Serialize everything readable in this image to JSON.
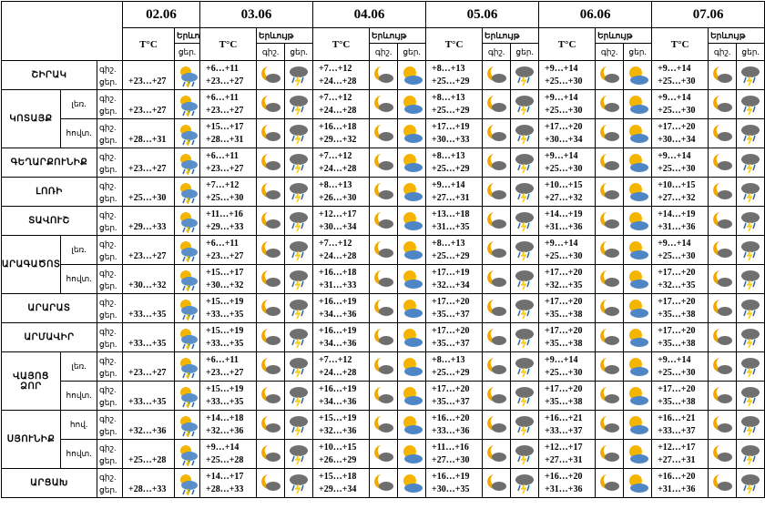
{
  "header": {
    "dates": [
      "02.06",
      "03.06",
      "04.06",
      "05.06",
      "06.06",
      "07.06"
    ],
    "temp_label": "T°C",
    "phenomenon_label": "Երևույթ",
    "night": "գիշ.",
    "day": "ցեր."
  },
  "regions": [
    {
      "name": "ՇԻՐԱԿ",
      "subs": [
        {
          "first_day": "+23…+27",
          "days": [
            [
              "+6…+11",
              "+23…+27"
            ],
            [
              "+7…+12",
              "+24…+28"
            ],
            [
              "+8…+13",
              "+25…+29"
            ],
            [
              "+9…+14",
              "+25…+30"
            ],
            [
              "+9…+14",
              "+25…+30"
            ]
          ]
        }
      ]
    },
    {
      "name": "ԿՈՏԱՅՔ",
      "subs": [
        {
          "label": "լեռ.",
          "first_day": "+23…+27",
          "days": [
            [
              "+6…+11",
              "+23…+27"
            ],
            [
              "+7…+12",
              "+24…+28"
            ],
            [
              "+8…+13",
              "+25…+29"
            ],
            [
              "+9…+14",
              "+25…+30"
            ],
            [
              "+9…+14",
              "+25…+30"
            ]
          ]
        },
        {
          "label": "հովտ.",
          "first_day": "+28…+31",
          "days": [
            [
              "+15…+17",
              "+28…+31"
            ],
            [
              "+16…+18",
              "+29…+32"
            ],
            [
              "+17…+19",
              "+30…+33"
            ],
            [
              "+17…+20",
              "+30…+34"
            ],
            [
              "+17…+20",
              "+30…+34"
            ]
          ]
        }
      ]
    },
    {
      "name": "ԳԵՂԱՐՔՈՒՆԻՔ",
      "subs": [
        {
          "first_day": "+23…+27",
          "days": [
            [
              "+6…+11",
              "+23…+27"
            ],
            [
              "+7…+12",
              "+24…+28"
            ],
            [
              "+8…+13",
              "+25…+29"
            ],
            [
              "+9…+14",
              "+25…+30"
            ],
            [
              "+9…+14",
              "+25…+30"
            ]
          ]
        }
      ]
    },
    {
      "name": "ԼՈՌԻ",
      "subs": [
        {
          "first_day": "+25…+30",
          "days": [
            [
              "+7…+12",
              "+25…+30"
            ],
            [
              "+8…+13",
              "+26…+30"
            ],
            [
              "+9…+14",
              "+27…+31"
            ],
            [
              "+10…+15",
              "+27…+32"
            ],
            [
              "+10…+15",
              "+27…+32"
            ]
          ]
        }
      ]
    },
    {
      "name": "ՏԱՎՈՒՇ",
      "subs": [
        {
          "first_day": "+29…+33",
          "days": [
            [
              "+11…+16",
              "+29…+33"
            ],
            [
              "+12…+17",
              "+30…+34"
            ],
            [
              "+13…+18",
              "+31…+35"
            ],
            [
              "+14…+19",
              "+31…+36"
            ],
            [
              "+14…+19",
              "+31…+36"
            ]
          ]
        }
      ]
    },
    {
      "name": "ԱՐԱԳԱԾՈՏՆ",
      "subs": [
        {
          "label": "լեռ.",
          "first_day": "+23…+27",
          "days": [
            [
              "+6…+11",
              "+23…+27"
            ],
            [
              "+7…+12",
              "+24…+28"
            ],
            [
              "+8…+13",
              "+25…+29"
            ],
            [
              "+9…+14",
              "+25…+30"
            ],
            [
              "+9…+14",
              "+25…+30"
            ]
          ]
        },
        {
          "label": "հովտ.",
          "first_day": "+30…+32",
          "days": [
            [
              "+15…+17",
              "+30…+32"
            ],
            [
              "+16…+18",
              "+31…+33"
            ],
            [
              "+17…+19",
              "+32…+34"
            ],
            [
              "+17…+20",
              "+32…+35"
            ],
            [
              "+17…+20",
              "+32…+35"
            ]
          ]
        }
      ]
    },
    {
      "name": "ԱՐԱՐԱՏ",
      "subs": [
        {
          "first_day": "+33…+35",
          "days": [
            [
              "+15…+19",
              "+33…+35"
            ],
            [
              "+16…+19",
              "+34…+36"
            ],
            [
              "+17…+20",
              "+35…+37"
            ],
            [
              "+17…+20",
              "+35…+38"
            ],
            [
              "+17…+20",
              "+35…+38"
            ]
          ]
        }
      ]
    },
    {
      "name": "ԱՐՄԱՎԻՐ",
      "subs": [
        {
          "first_day": "+33…+35",
          "days": [
            [
              "+15…+19",
              "+33…+35"
            ],
            [
              "+16…+19",
              "+34…+36"
            ],
            [
              "+17…+20",
              "+35…+37"
            ],
            [
              "+17…+20",
              "+35…+38"
            ],
            [
              "+17…+20",
              "+35…+38"
            ]
          ]
        }
      ]
    },
    {
      "name": "ՎԱՅՈՑ ՁՈՐ",
      "subs": [
        {
          "label": "լեռ.",
          "first_day": "+23…+27",
          "days": [
            [
              "+6…+11",
              "+23…+27"
            ],
            [
              "+7…+12",
              "+24…+28"
            ],
            [
              "+8…+13",
              "+25…+29"
            ],
            [
              "+9…+14",
              "+25…+30"
            ],
            [
              "+9…+14",
              "+25…+30"
            ]
          ]
        },
        {
          "label": "հովտ.",
          "first_day": "+33…+35",
          "days": [
            [
              "+15…+19",
              "+33…+35"
            ],
            [
              "+16…+19",
              "+34…+36"
            ],
            [
              "+17…+20",
              "+35…+37"
            ],
            [
              "+17…+20",
              "+35…+38"
            ],
            [
              "+17…+20",
              "+35…+38"
            ]
          ]
        }
      ]
    },
    {
      "name": "ՍՅՈՒՆԻՔ",
      "subs": [
        {
          "label": "հով.",
          "first_day": "+32…+36",
          "days": [
            [
              "+14…+18",
              "+32…+36"
            ],
            [
              "+15…+19",
              "+32…+36"
            ],
            [
              "+16…+20",
              "+33…+36"
            ],
            [
              "+16…+21",
              "+33…+37"
            ],
            [
              "+16…+21",
              "+33…+37"
            ]
          ]
        },
        {
          "label": "հովտ.",
          "first_day": "+25…+28",
          "days": [
            [
              "+9…+14",
              "+25…+28"
            ],
            [
              "+10…+15",
              "+26…+29"
            ],
            [
              "+11…+16",
              "+27…+30"
            ],
            [
              "+12…+17",
              "+27…+31"
            ],
            [
              "+12…+17",
              "+27…+31"
            ]
          ]
        }
      ]
    },
    {
      "name": "ԱՐՑԱԽ",
      "subs": [
        {
          "first_day": "+28…+33",
          "days": [
            [
              "+14…+17",
              "+28…+33"
            ],
            [
              "+15…+18",
              "+29…+34"
            ],
            [
              "+16…+19",
              "+30…+35"
            ],
            [
              "+16…+20",
              "+31…+36"
            ],
            [
              "+16…+20",
              "+31…+36"
            ]
          ]
        }
      ]
    }
  ]
}
